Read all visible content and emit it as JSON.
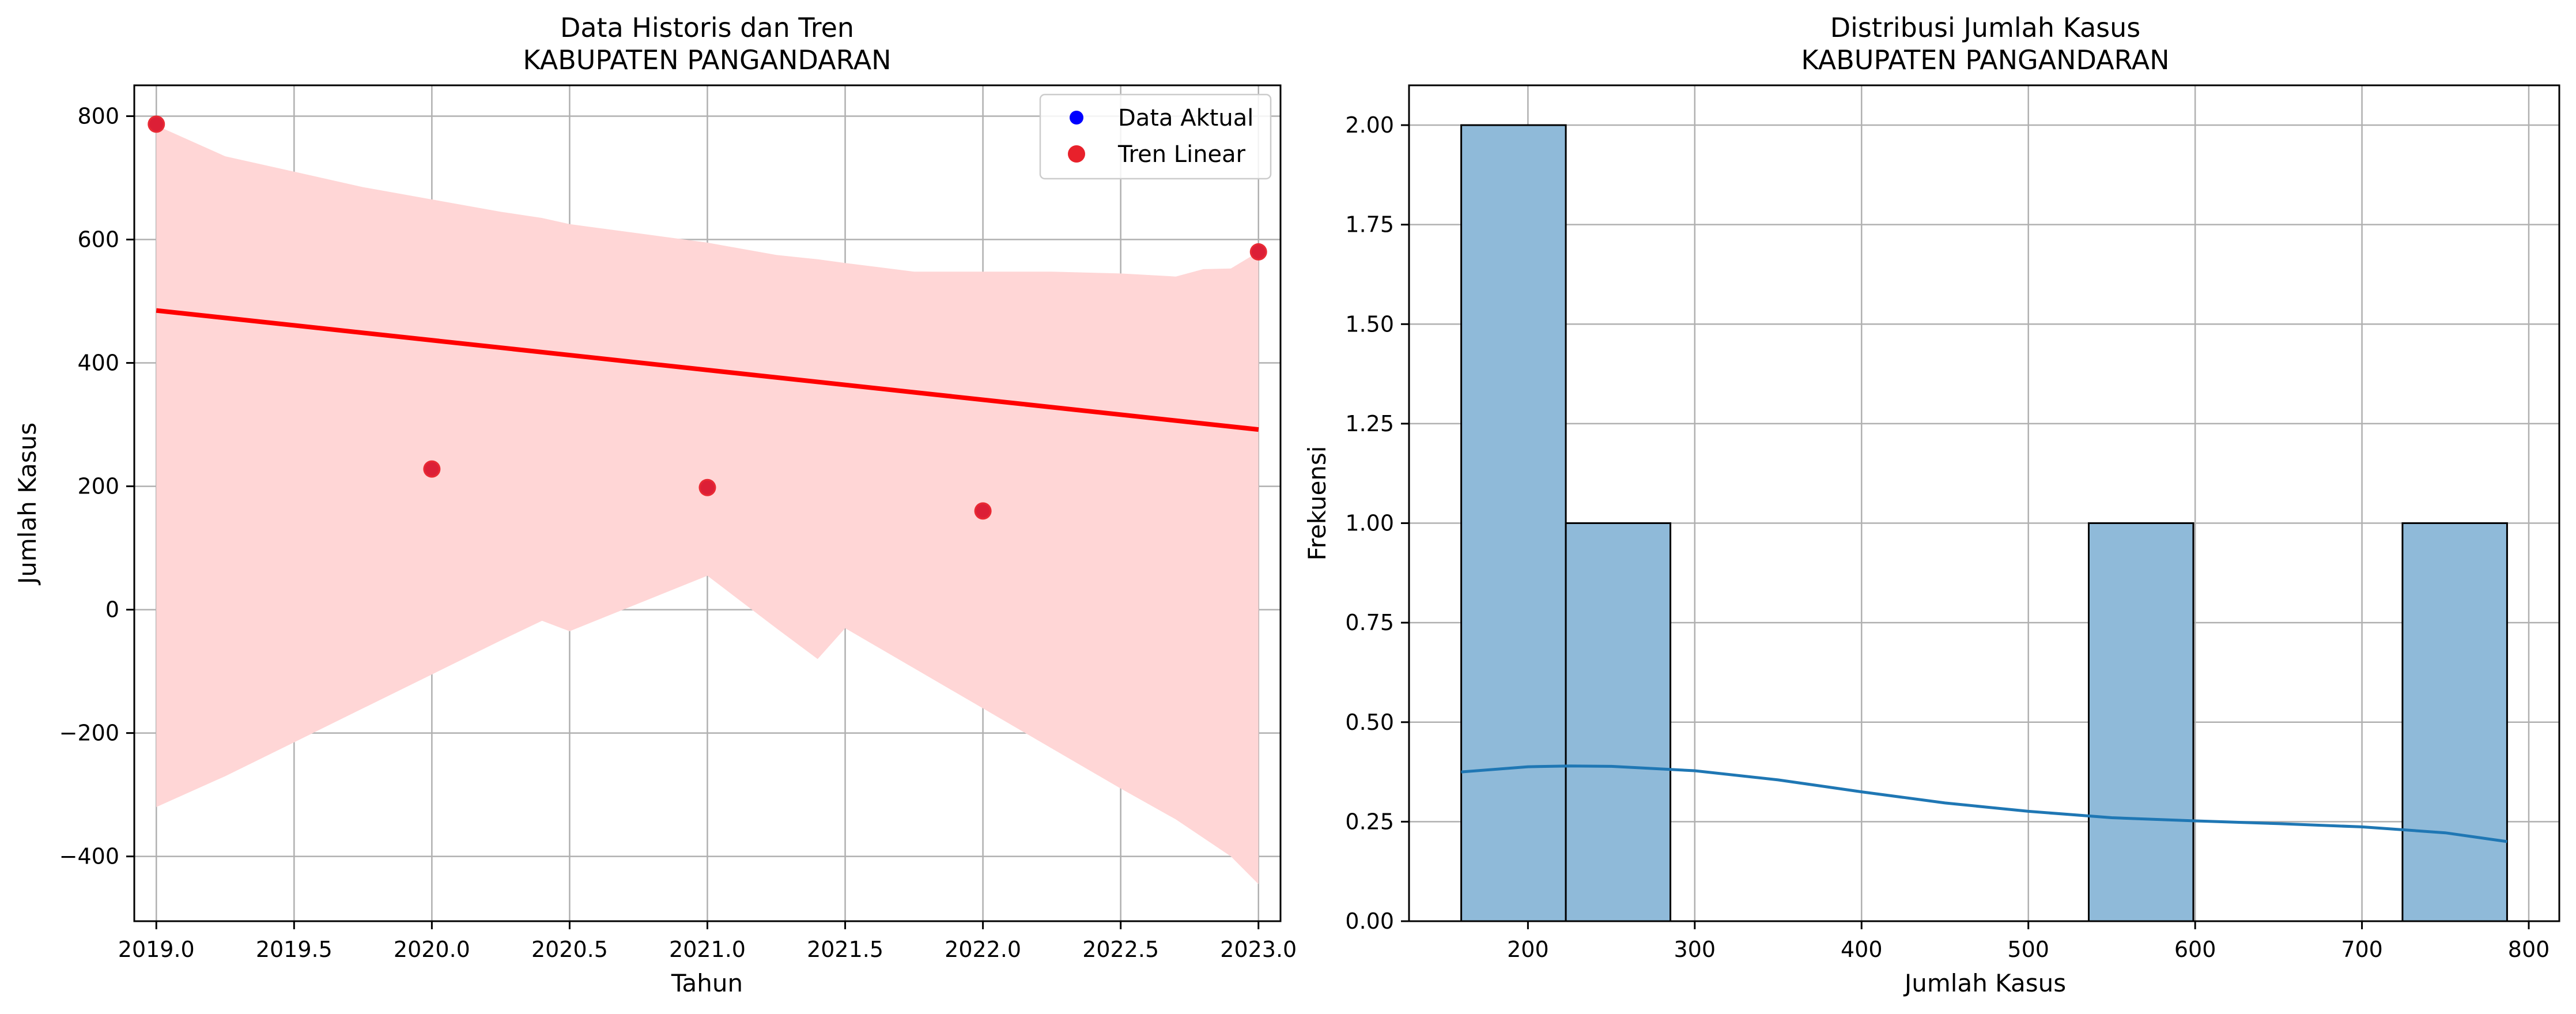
{
  "chart_data": [
    {
      "type": "scatter",
      "title": "Data Historis dan Tren",
      "subtitle": "KABUPATEN PANGANDARAN",
      "xlabel": "Tahun",
      "ylabel": "Jumlah Kasus",
      "xlim": [
        2018.92,
        2023.08
      ],
      "ylim": [
        -505,
        850
      ],
      "xticks": [
        2019.0,
        2019.5,
        2020.0,
        2020.5,
        2021.0,
        2021.5,
        2022.0,
        2022.5,
        2023.0
      ],
      "xtick_labels": [
        "2019.0",
        "2019.5",
        "2020.0",
        "2020.5",
        "2021.0",
        "2021.5",
        "2022.0",
        "2022.5",
        "2023.0"
      ],
      "yticks": [
        -400,
        -200,
        0,
        200,
        400,
        600,
        800
      ],
      "ytick_labels": [
        "−400",
        "−200",
        "0",
        "200",
        "400",
        "600",
        "800"
      ],
      "grid": true,
      "legend": {
        "position": "top-right",
        "entries": [
          {
            "label": "Data Aktual",
            "color": "#0000ff"
          },
          {
            "label": "Tren Linear",
            "color": "#e8212b"
          }
        ]
      },
      "series": [
        {
          "name": "Data Aktual",
          "kind": "scatter",
          "color": "#0000ff",
          "x": [
            2019,
            2020,
            2021,
            2022,
            2023
          ],
          "y": [
            787,
            228,
            198,
            160,
            580
          ]
        },
        {
          "name": "Tren Linear",
          "kind": "scatter+regression",
          "color": "#e8212b",
          "x": [
            2019,
            2020,
            2021,
            2022,
            2023
          ],
          "y": [
            787,
            228,
            198,
            160,
            580
          ],
          "fit": {
            "x": [
              2019,
              2023
            ],
            "y": [
              485,
              292
            ]
          },
          "confidence_band": {
            "color": "#ffd6d6",
            "x": [
              2019.0,
              2019.25,
              2019.5,
              2019.75,
              2020.0,
              2020.25,
              2020.4,
              2020.5,
              2020.75,
              2021.0,
              2021.25,
              2021.4,
              2021.5,
              2021.75,
              2022.0,
              2022.25,
              2022.5,
              2022.7,
              2022.8,
              2022.9,
              2023.0
            ],
            "upper": [
              785,
              735,
              710,
              685,
              665,
              645,
              635,
              625,
              610,
              595,
              575,
              568,
              562,
              548,
              548,
              548,
              545,
              540,
              552,
              553,
              580
            ],
            "lower": [
              -320,
              -270,
              -215,
              -160,
              -105,
              -50,
              -18,
              -35,
              10,
              55,
              -30,
              -80,
              -30,
              -95,
              -160,
              -225,
              -290,
              -340,
              -370,
              -400,
              -445
            ]
          }
        }
      ]
    },
    {
      "type": "bar",
      "title": "Distribusi Jumlah Kasus",
      "subtitle": "KABUPATEN PANGANDARAN",
      "xlabel": "Jumlah Kasus",
      "ylabel": "Frekuensi",
      "xlim": [
        128.7,
        818.3
      ],
      "ylim": [
        0,
        2.1
      ],
      "xticks": [
        200,
        300,
        400,
        500,
        600,
        700,
        800
      ],
      "xtick_labels": [
        "200",
        "300",
        "400",
        "500",
        "600",
        "700",
        "800"
      ],
      "yticks": [
        0,
        0.25,
        0.5,
        0.75,
        1.0,
        1.25,
        1.5,
        1.75,
        2.0
      ],
      "ytick_labels": [
        "0.00",
        "0.25",
        "0.50",
        "0.75",
        "1.00",
        "1.25",
        "1.50",
        "1.75",
        "2.00"
      ],
      "grid": true,
      "bar_color": "#8fbad9",
      "bin_edges": [
        160.0,
        222.7,
        285.4,
        348.1,
        410.8,
        473.5,
        536.2,
        598.9,
        661.6,
        724.3,
        787.0
      ],
      "counts": [
        2,
        1,
        0,
        0,
        0,
        0,
        1,
        0,
        0,
        1
      ],
      "kde": {
        "color": "#1f77b4",
        "x": [
          160,
          200,
          225,
          250,
          300,
          350,
          400,
          450,
          500,
          550,
          600,
          650,
          700,
          750,
          787
        ],
        "y": [
          0.375,
          0.388,
          0.39,
          0.389,
          0.378,
          0.355,
          0.325,
          0.297,
          0.276,
          0.26,
          0.252,
          0.245,
          0.237,
          0.222,
          0.2
        ]
      }
    }
  ]
}
